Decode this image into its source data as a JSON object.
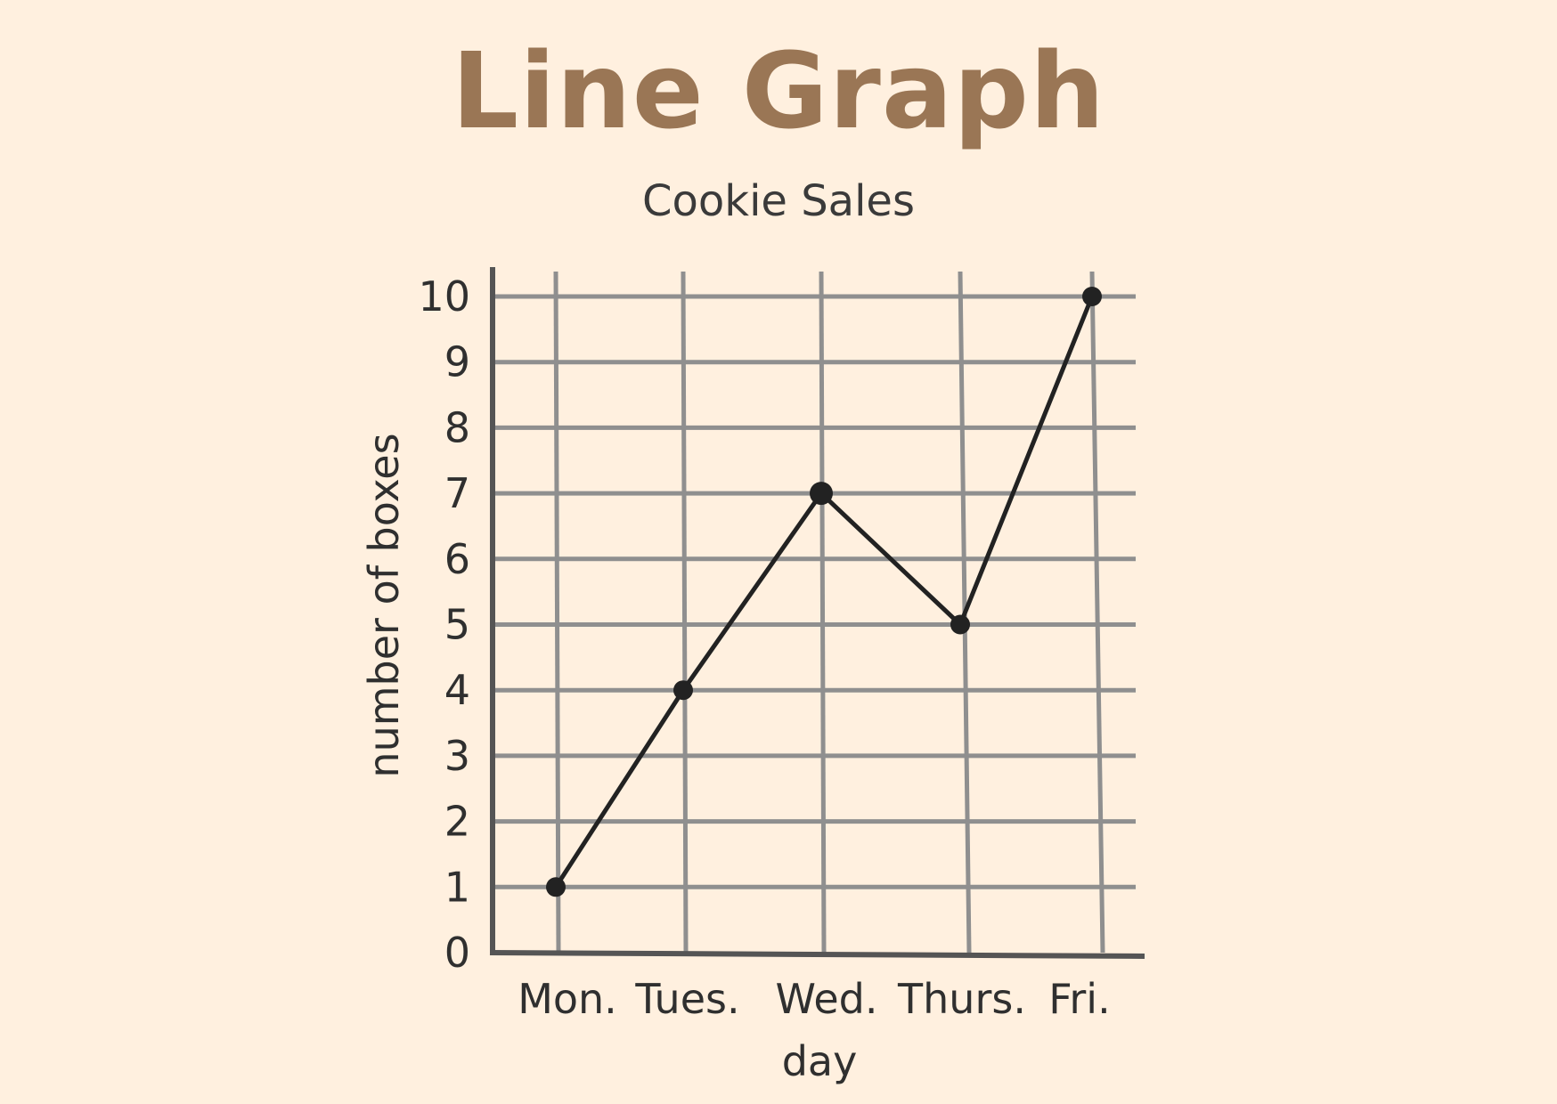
{
  "header": {
    "title": "Line Graph"
  },
  "colors": {
    "title": "#9a7655",
    "grid": "#8f8f8f",
    "axis": "#555555",
    "line": "#222222",
    "background": "#fff0df"
  },
  "chart_data": {
    "type": "line",
    "title": "Cookie Sales",
    "xlabel": "day",
    "ylabel": "number of boxes",
    "categories": [
      "Mon.",
      "Tues.",
      "Wed.",
      "Thurs.",
      "Fri."
    ],
    "values": [
      1,
      4,
      7,
      5,
      10
    ],
    "y_ticks": [
      "0",
      "1",
      "2",
      "3",
      "4",
      "5",
      "6",
      "7",
      "8",
      "9",
      "10"
    ],
    "ylim": [
      0,
      10
    ],
    "grid": true,
    "legend": "none"
  }
}
